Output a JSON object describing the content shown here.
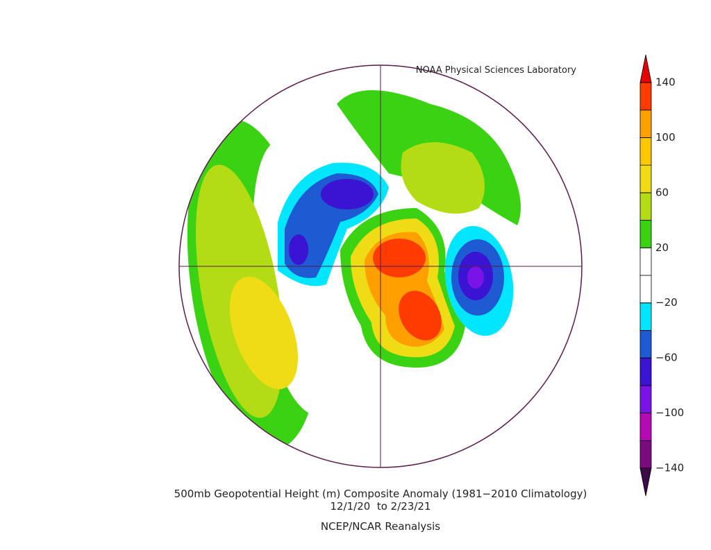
{
  "header": {
    "title": "NOAA Physical Sciences Laboratory"
  },
  "caption": {
    "line1": "500mb Geopotential Height (m) Composite Anomaly (1981−2010 Climatology)",
    "line2": "12/1/20  to 2/23/21",
    "line3": "NCEP/NCAR Reanalysis"
  },
  "colorbar": {
    "lim": [
      -140,
      140
    ],
    "colors": [
      "#3c0a4a",
      "#7a0a80",
      "#b40ab4",
      "#7a14e6",
      "#3a14d2",
      "#1e5ad2",
      "#00e6ff",
      "#ffffff",
      "#ffffff",
      "#3cd214",
      "#b4dc14",
      "#f0dc14",
      "#ffc800",
      "#ffa000",
      "#ff3c00",
      "#e60000"
    ],
    "ticks": [
      {
        "value": -140,
        "label": "−140"
      },
      {
        "value": -100,
        "label": "−100"
      },
      {
        "value": -60,
        "label": "−60"
      },
      {
        "value": -20,
        "label": "−20"
      },
      20,
      60,
      100,
      140
    ]
  }
}
